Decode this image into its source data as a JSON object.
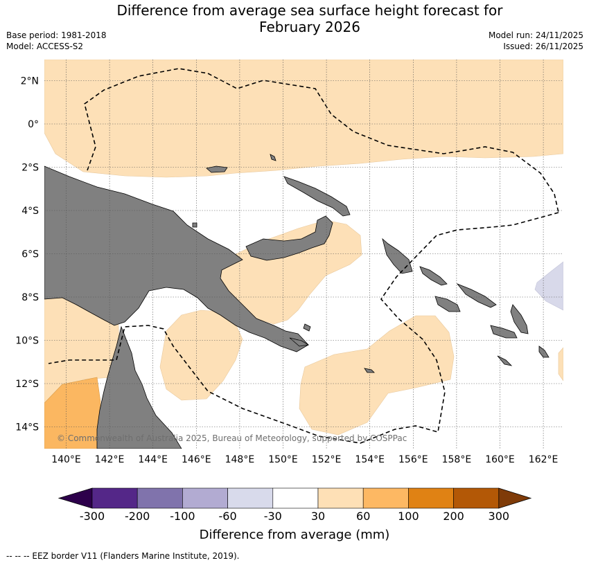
{
  "header": {
    "title_line1": "Difference from average sea surface height forecast for",
    "title_line2": "February 2026",
    "base_period": "Base period: 1981-2018",
    "model": "Model: ACCESS-S2",
    "model_run": "Model run: 24/11/2025",
    "issued": "Issued: 26/11/2025"
  },
  "map": {
    "lat_labels": [
      "2°N",
      "0°",
      "2°S",
      "4°S",
      "6°S",
      "8°S",
      "10°S",
      "12°S",
      "14°S"
    ],
    "lon_labels": [
      "140°E",
      "142°E",
      "144°E",
      "146°E",
      "148°E",
      "150°E",
      "152°E",
      "154°E",
      "156°E",
      "158°E",
      "160°E",
      "162°E"
    ],
    "copyright": "© Commonwealth of Australia 2025, Bureau of Meteorology, supported by COSPPac",
    "colors": {
      "land": "#808080",
      "pos_30_60": "#fde0b7",
      "pos_60_100": "#fbb761",
      "neg_60_30": "#d8d9ea"
    }
  },
  "colorbar": {
    "tick_labels": [
      "-300",
      "-200",
      "-100",
      "-60",
      "-30",
      "30",
      "60",
      "100",
      "200",
      "300"
    ],
    "colors": [
      "#2d004b",
      "#542788",
      "#8073ac",
      "#b2abd2",
      "#d8daeb",
      "#ffffff",
      "#fee0b6",
      "#fdb863",
      "#e08214",
      "#b35806",
      "#7f3b08"
    ],
    "title": "Difference from average (mm)"
  },
  "footer": {
    "legend": "--  --  -- EEZ border V11 (Flanders Marine Institute, 2019)."
  }
}
